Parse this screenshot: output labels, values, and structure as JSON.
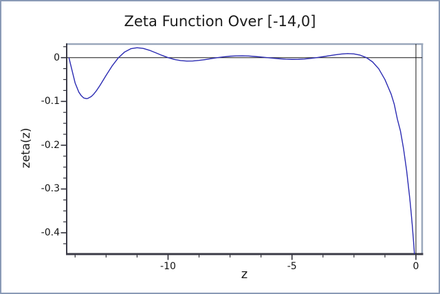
{
  "figure": {
    "title": "Zeta Function Over [-14,0]",
    "xlabel": "z",
    "ylabel": "zeta(z)"
  },
  "colors": {
    "background": "#ffffff",
    "outer_border": "#8a9ab6",
    "spine_dark": "#3a3a46",
    "spine_light": "#9aa7bb",
    "axis_line": "#161616",
    "tick": "#2e2e38",
    "curve": "#2a2ab2",
    "text": "#1a1a1a"
  },
  "chart_data": {
    "type": "line",
    "title": "Zeta Function Over [-14,0]",
    "xlabel": "z",
    "ylabel": "zeta(z)",
    "xlim": [
      -14.09,
      0.25
    ],
    "ylim": [
      -0.4486,
      0.031
    ],
    "grid": false,
    "legend_position": "none",
    "axes_lines": {
      "x_axis_at_y": 0,
      "y_axis_at_x": 0
    },
    "x_major_ticks": [
      {
        "value": -10,
        "label": "-10"
      },
      {
        "value": -5,
        "label": "-5"
      },
      {
        "value": 0,
        "label": "0"
      }
    ],
    "x_minor_ticks": [
      -13.75,
      -12.5,
      -11.25,
      -8.75,
      -7.5,
      -6.25,
      -3.75,
      -2.5,
      -1.25
    ],
    "y_major_ticks": [
      {
        "value": 0,
        "label": "0"
      },
      {
        "value": -0.1,
        "label": "-0.1"
      },
      {
        "value": -0.2,
        "label": "-0.2"
      },
      {
        "value": -0.3,
        "label": "-0.3"
      },
      {
        "value": -0.4,
        "label": "-0.4"
      }
    ],
    "y_minor_ticks": [
      0.025,
      -0.025,
      -0.05,
      -0.075,
      -0.125,
      -0.15,
      -0.175,
      -0.225,
      -0.25,
      -0.275,
      -0.325,
      -0.35,
      -0.375,
      -0.425
    ],
    "series": [
      {
        "name": "zeta(z)",
        "color": "#2a2ab2",
        "points": [
          [
            -14,
            0
          ],
          [
            -13.75,
            -0.0578
          ],
          [
            -13.6,
            -0.0788
          ],
          [
            -13.5,
            -0.087
          ],
          [
            -13.4,
            -0.0922
          ],
          [
            -13.3,
            -0.0936
          ],
          [
            -13.25,
            -0.0934
          ],
          [
            -13.1,
            -0.0889
          ],
          [
            -13,
            -0.0833
          ],
          [
            -12.9,
            -0.0763
          ],
          [
            -12.75,
            -0.0638
          ],
          [
            -12.5,
            -0.0405
          ],
          [
            -12.25,
            -0.0184
          ],
          [
            -12,
            0
          ],
          [
            -11.75,
            0.013
          ],
          [
            -11.5,
            0.0204
          ],
          [
            -11.25,
            0.0227
          ],
          [
            -11,
            0.0211
          ],
          [
            -10.75,
            0.0168
          ],
          [
            -10.5,
            0.0111
          ],
          [
            -10.25,
            0.0053
          ],
          [
            -10,
            0
          ],
          [
            -9.75,
            -0.0041
          ],
          [
            -9.5,
            -0.0066
          ],
          [
            -9.25,
            -0.0078
          ],
          [
            -9,
            -0.0076
          ],
          [
            -8.75,
            -0.0063
          ],
          [
            -8.5,
            -0.0044
          ],
          [
            -8.25,
            -0.0022
          ],
          [
            -8,
            0
          ],
          [
            -7.75,
            0.0019
          ],
          [
            -7.5,
            0.0033
          ],
          [
            -7.25,
            0.004
          ],
          [
            -7,
            0.0042
          ],
          [
            -6.75,
            0.0037
          ],
          [
            -6.5,
            0.0027
          ],
          [
            -6.25,
            0.0014
          ],
          [
            -6,
            0
          ],
          [
            -5.75,
            -0.0014
          ],
          [
            -5.5,
            -0.0026
          ],
          [
            -5.25,
            -0.0035
          ],
          [
            -5,
            -0.004
          ],
          [
            -4.75,
            -0.0038
          ],
          [
            -4.5,
            -0.0031
          ],
          [
            -4.25,
            -0.0018
          ],
          [
            -4,
            0
          ],
          [
            -3.75,
            0.0021
          ],
          [
            -3.5,
            0.0044
          ],
          [
            -3.25,
            0.0066
          ],
          [
            -3,
            0.0083
          ],
          [
            -2.75,
            0.0092
          ],
          [
            -2.5,
            0.0085
          ],
          [
            -2.25,
            0.0057
          ],
          [
            -2,
            0
          ],
          [
            -1.75,
            -0.0097
          ],
          [
            -1.5,
            -0.0255
          ],
          [
            -1.25,
            -0.0501
          ],
          [
            -1,
            -0.0833
          ],
          [
            -0.875,
            -0.1063
          ],
          [
            -0.75,
            -0.1402
          ],
          [
            -0.625,
            -0.1674
          ],
          [
            -0.5,
            -0.2079
          ],
          [
            -0.375,
            -0.2582
          ],
          [
            -0.25,
            -0.3205
          ],
          [
            -0.2,
            -0.3497
          ],
          [
            -0.15,
            -0.3813
          ],
          [
            -0.1,
            -0.4173
          ],
          [
            -0.05,
            -0.4565
          ]
        ]
      }
    ]
  }
}
